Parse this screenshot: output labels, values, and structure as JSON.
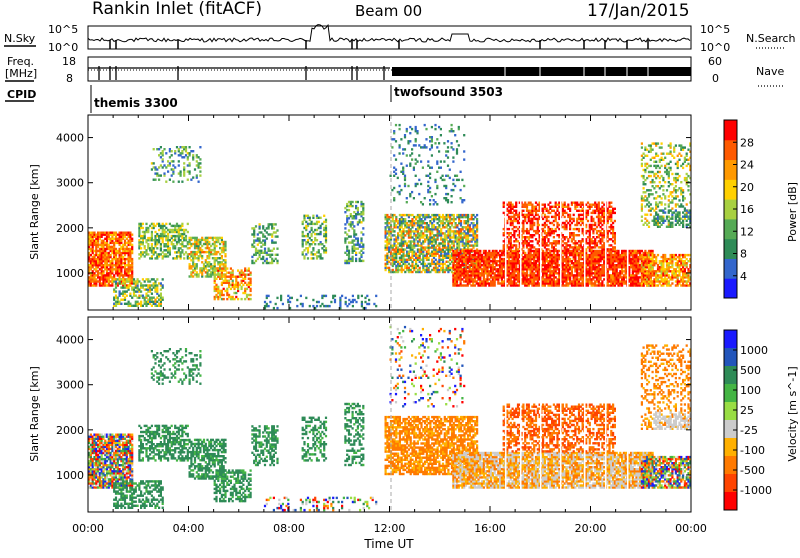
{
  "header": {
    "station": "Rankin Inlet (fitACF)",
    "beam": "Beam 00",
    "date": "17/Jan/2015"
  },
  "top_panels": {
    "nsky_label": "N.Sky",
    "nsky_ticks": [
      "10^5",
      "10^0"
    ],
    "nsearch_label": "N.Search",
    "nsearch_ticks": [
      "10^5",
      "10^0"
    ],
    "freq_label_1": "Freq.",
    "freq_label_2": "[MHz]",
    "freq_ticks": [
      "18",
      "8"
    ],
    "nave_label": "Nave",
    "nave_ticks": [
      "60",
      "0"
    ],
    "cpid_label": "CPID",
    "cpid_segments": [
      {
        "name": "themis 3300",
        "start_hour": 0
      },
      {
        "name": "twofsound 3503",
        "start_hour": 12.3
      }
    ]
  },
  "chart_data": [
    {
      "type": "heatmap",
      "title": "",
      "ylabel": "Slant Range [km]",
      "y_ticks": [
        "1000",
        "2000",
        "3000",
        "4000"
      ],
      "ylim": [
        180,
        4500
      ],
      "xlim_hours": [
        0,
        24
      ],
      "colorbar": {
        "label": "Power [dB]",
        "ticks": [
          "4",
          "8",
          "12",
          "16",
          "20",
          "24",
          "28"
        ],
        "colors": [
          "#1a1aff",
          "#3366cc",
          "#2e8b57",
          "#55aa55",
          "#a8d040",
          "#ffd000",
          "#ff9900",
          "#ff5a00",
          "#ff0000"
        ]
      }
    },
    {
      "type": "heatmap",
      "title": "",
      "ylabel": "Slant Range [km]",
      "y_ticks": [
        "1000",
        "2000",
        "3000",
        "4000"
      ],
      "ylim": [
        180,
        4500
      ],
      "xlim_hours": [
        0,
        24
      ],
      "colorbar": {
        "label": "Velocity [m s^-1]",
        "ticks": [
          "1000",
          "500",
          "100",
          "25",
          "-25",
          "-100",
          "-500",
          "-1000"
        ],
        "colors": [
          "#1a1aff",
          "#2255bb",
          "#2e8b57",
          "#44b544",
          "#99dd44",
          "#cccccc",
          "#ffb000",
          "#ff7a00",
          "#ff4400",
          "#ff0000"
        ]
      }
    }
  ],
  "x_axis": {
    "ticks": [
      "00:00",
      "04:00",
      "08:00",
      "12:00",
      "16:00",
      "20:00",
      "00:00"
    ],
    "label": "Time UT"
  }
}
